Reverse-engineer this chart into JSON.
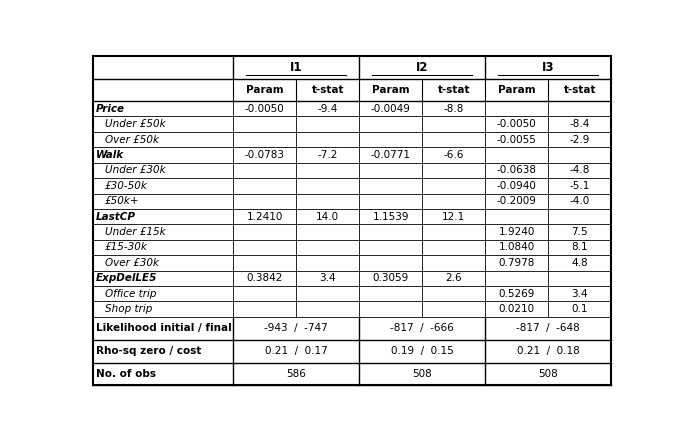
{
  "col_groups": [
    "",
    "I1",
    "I2",
    "I3"
  ],
  "col_headers": [
    "",
    "Param",
    "t-stat",
    "Param",
    "t-stat",
    "Param",
    "t-stat"
  ],
  "rows": [
    {
      "label": "Price",
      "style": "bold_italic",
      "indent": false,
      "vals": [
        "-0.0050",
        "-9.4",
        "-0.0049",
        "-8.8",
        "",
        ""
      ]
    },
    {
      "label": "Under £50k",
      "style": "italic",
      "indent": true,
      "vals": [
        "",
        "",
        "",
        "",
        "-0.0050",
        "-8.4"
      ]
    },
    {
      "label": "Over £50k",
      "style": "italic",
      "indent": true,
      "vals": [
        "",
        "",
        "",
        "",
        "-0.0055",
        "-2.9"
      ]
    },
    {
      "label": "Walk",
      "style": "bold_italic",
      "indent": false,
      "vals": [
        "-0.0783",
        "-7.2",
        "-0.0771",
        "-6.6",
        "",
        ""
      ]
    },
    {
      "label": "Under £30k",
      "style": "italic",
      "indent": true,
      "vals": [
        "",
        "",
        "",
        "",
        "-0.0638",
        "-4.8"
      ]
    },
    {
      "label": "£30-50k",
      "style": "italic",
      "indent": true,
      "vals": [
        "",
        "",
        "",
        "",
        "-0.0940",
        "-5.1"
      ]
    },
    {
      "label": "£50k+",
      "style": "italic",
      "indent": true,
      "vals": [
        "",
        "",
        "",
        "",
        "-0.2009",
        "-4.0"
      ]
    },
    {
      "label": "LastCP",
      "style": "bold_italic",
      "indent": false,
      "vals": [
        "1.2410",
        "14.0",
        "1.1539",
        "12.1",
        "",
        ""
      ]
    },
    {
      "label": "Under £15k",
      "style": "italic",
      "indent": true,
      "vals": [
        "",
        "",
        "",
        "",
        "1.9240",
        "7.5"
      ]
    },
    {
      "label": "£15-30k",
      "style": "italic",
      "indent": true,
      "vals": [
        "",
        "",
        "",
        "",
        "1.0840",
        "8.1"
      ]
    },
    {
      "label": "Over £30k",
      "style": "italic",
      "indent": true,
      "vals": [
        "",
        "",
        "",
        "",
        "0.7978",
        "4.8"
      ]
    },
    {
      "label": "ExpDelLE5",
      "style": "bold_italic",
      "indent": false,
      "vals": [
        "0.3842",
        "3.4",
        "0.3059",
        "2.6",
        "",
        ""
      ]
    },
    {
      "label": "Office trip",
      "style": "italic",
      "indent": true,
      "vals": [
        "",
        "",
        "",
        "",
        "0.5269",
        "3.4"
      ]
    },
    {
      "label": "Shop trip",
      "style": "italic",
      "indent": true,
      "vals": [
        "",
        "",
        "",
        "",
        "0.0210",
        "0.1"
      ]
    }
  ],
  "bottom_rows": [
    {
      "label": "Likelihood initial / final",
      "style": "bold",
      "i1": "-943  /  -747",
      "i2": "-817  /  -666",
      "i3": "-817  /  -648"
    },
    {
      "label": "Rho-sq zero / cost",
      "style": "bold",
      "i1": "0.21  /  0.17",
      "i2": "0.19  /  0.15",
      "i3": "0.21  /  0.18"
    },
    {
      "label": "No. of obs",
      "style": "bold",
      "i1": "586",
      "i2": "508",
      "i3": "508"
    }
  ],
  "bg_color": "#ffffff",
  "line_color": "#000000"
}
